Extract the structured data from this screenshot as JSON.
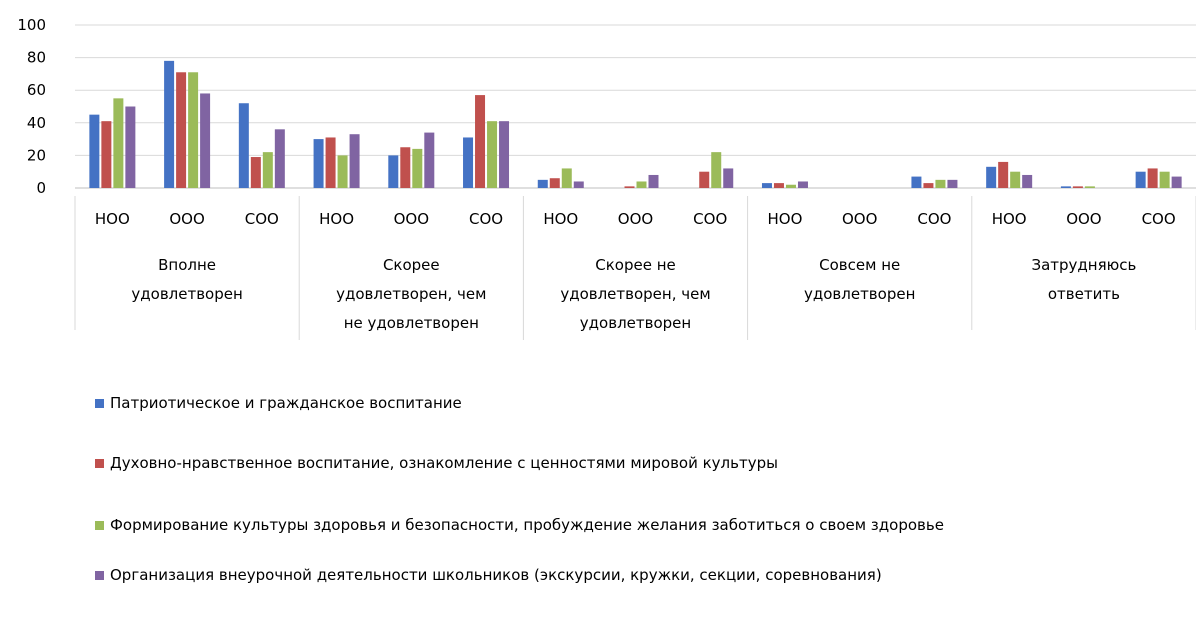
{
  "chart_data": {
    "type": "bar",
    "ylim": [
      0,
      100
    ],
    "yticks": [
      0,
      20,
      40,
      60,
      80,
      100
    ],
    "grid": true,
    "legend_position": "bottom",
    "groups": [
      {
        "label_lines": [
          "Вполне",
          "удовлетворен"
        ]
      },
      {
        "label_lines": [
          "Скорее",
          "удовлетворен, чем",
          "не удовлетворен"
        ]
      },
      {
        "label_lines": [
          "Скорее не",
          "удовлетворен, чем",
          "удовлетворен"
        ]
      },
      {
        "label_lines": [
          "Совсем не",
          "удовлетворен"
        ]
      },
      {
        "label_lines": [
          "Затрудняюсь",
          "ответить"
        ]
      }
    ],
    "subcategories": [
      "НОО",
      "ООО",
      "СОО"
    ],
    "series": [
      {
        "name": "Патриотическое и гражданское воспитание",
        "color": "#4472C4",
        "values": [
          45,
          78,
          52,
          30,
          20,
          31,
          5,
          0,
          0,
          3,
          0,
          7,
          13,
          1,
          10
        ]
      },
      {
        "name": "Духовно-нравственное воспитание, ознакомление с ценностями мировой культуры",
        "color": "#C0504D",
        "values": [
          41,
          71,
          19,
          31,
          25,
          57,
          6,
          1,
          10,
          3,
          0,
          3,
          16,
          1,
          12
        ]
      },
      {
        "name": " Формирование культуры здоровья и безопасности, пробуждение желания заботиться о своем здоровье",
        "color": "#9BBB59",
        "values": [
          55,
          71,
          22,
          20,
          24,
          41,
          12,
          4,
          22,
          2,
          0,
          5,
          10,
          1,
          10
        ]
      },
      {
        "name": "Организация внеурочной деятельности  школьников (экскурсии, кружки, секции, соревнования)",
        "color": "#8064A2",
        "values": [
          50,
          58,
          36,
          33,
          34,
          41,
          4,
          8,
          12,
          4,
          0,
          5,
          8,
          0,
          7
        ]
      }
    ]
  }
}
